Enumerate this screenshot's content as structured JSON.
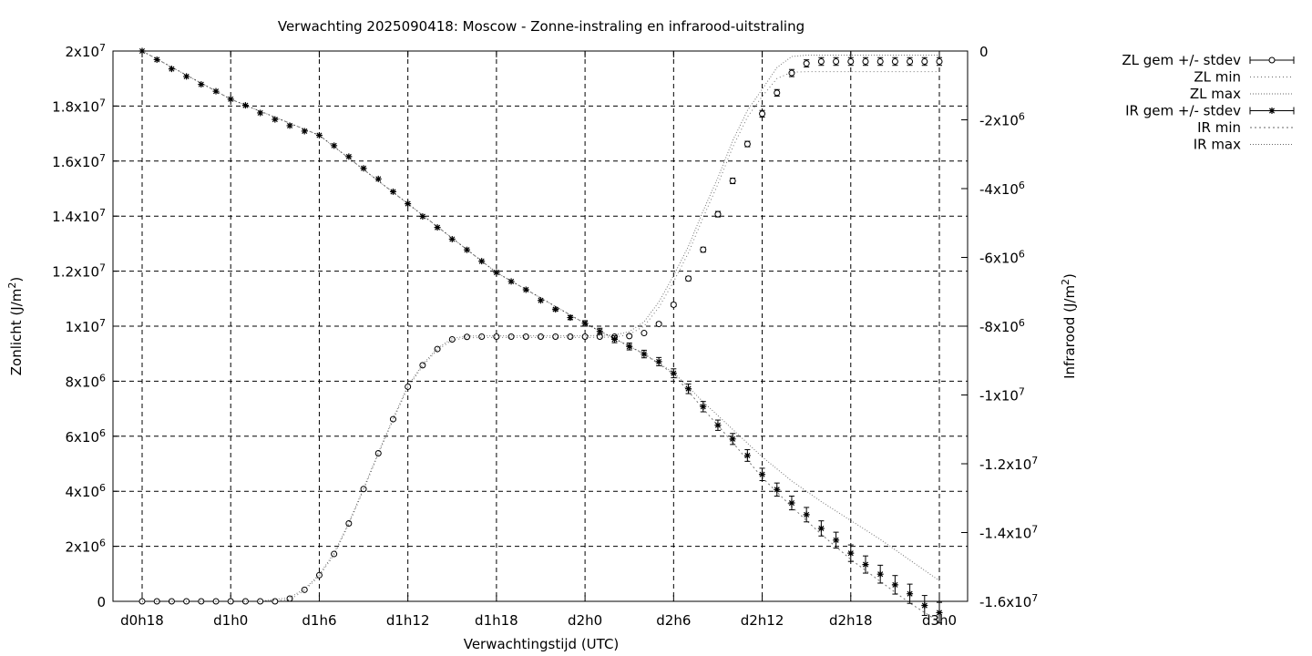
{
  "chart_data": {
    "type": "line",
    "title": "Verwachting 2025090418: Moscow - Zonne-instraling en infrarood-uitstraling",
    "xlabel": "Verwachtingstijd (UTC)",
    "ylabel": "Zonlicht (J/m²)",
    "y2label": "Infrarood (J/m²)",
    "x_ticks": [
      "d0h18",
      "d1h0",
      "d1h6",
      "d1h12",
      "d1h18",
      "d2h0",
      "d2h6",
      "d2h12",
      "d2h18",
      "d3h0"
    ],
    "xlim_hours": [
      18,
      72
    ],
    "y_ticks": [
      "0",
      "2x10^6",
      "4x10^6",
      "6x10^6",
      "8x10^6",
      "1x10^7",
      "1.2x10^7",
      "1.4x10^7",
      "1.6x10^7",
      "1.8x10^7",
      "2x10^7"
    ],
    "ylim": [
      0,
      20000000
    ],
    "y2_ticks": [
      "-1.6x10^7",
      "-1.4x10^7",
      "-1.2x10^7",
      "-1x10^7",
      "-8x10^6",
      "-6x10^6",
      "-4x10^6",
      "-2x10^6",
      "0"
    ],
    "y2lim": [
      -16000000,
      0
    ],
    "grid": true,
    "legend_position": "right, outside",
    "series": [
      {
        "name": "ZL gem +/- stdev",
        "axis": "y",
        "marker": "circle",
        "x_hours": [
          18,
          19,
          20,
          21,
          22,
          23,
          24,
          25,
          26,
          27,
          28,
          29,
          30,
          31,
          32,
          33,
          34,
          35,
          36,
          37,
          38,
          39,
          40,
          41,
          42,
          43,
          44,
          45,
          46,
          47,
          48,
          49,
          50,
          51,
          52,
          53,
          54,
          55,
          56,
          57,
          58,
          59,
          60,
          61,
          62,
          63,
          64,
          65,
          66,
          67,
          68,
          69,
          70,
          71,
          72
        ],
        "values": [
          0,
          0,
          0,
          0,
          0,
          0,
          0,
          0,
          0,
          0,
          100000,
          420000,
          950000,
          1720000,
          2830000,
          4080000,
          5380000,
          6620000,
          7800000,
          8580000,
          9170000,
          9520000,
          9610000,
          9620000,
          9620000,
          9620000,
          9620000,
          9620000,
          9620000,
          9620000,
          9620000,
          9620000,
          9620000,
          9640000,
          9750000,
          10080000,
          10780000,
          11730000,
          12780000,
          14070000,
          15280000,
          16620000,
          17720000,
          18480000,
          19200000,
          19550000,
          19620000,
          19620000,
          19620000,
          19620000,
          19620000,
          19620000,
          19620000,
          19620000,
          19620000
        ],
        "stdev": [
          0,
          0,
          0,
          0,
          0,
          0,
          0,
          0,
          0,
          0,
          0,
          0,
          0,
          0,
          0,
          0,
          0,
          0,
          0,
          0,
          0,
          0,
          0,
          0,
          0,
          0,
          0,
          0,
          0,
          0,
          0,
          0,
          0,
          0,
          0,
          60000,
          70000,
          80000,
          90000,
          100000,
          100000,
          100000,
          120000,
          120000,
          130000,
          130000,
          140000,
          140000,
          140000,
          140000,
          140000,
          140000,
          140000,
          140000,
          140000
        ]
      },
      {
        "name": "ZL min",
        "axis": "y",
        "x_hours": [
          18,
          24,
          26,
          28,
          29,
          30,
          31,
          32,
          33,
          34,
          35,
          36,
          37,
          38,
          39,
          40,
          42,
          44,
          46,
          48,
          50,
          51,
          52,
          53,
          54,
          55,
          56,
          57,
          58,
          59,
          60,
          61,
          62,
          63,
          64,
          65,
          66,
          72
        ],
        "values": [
          0,
          0,
          0,
          60000,
          400000,
          920000,
          1690000,
          2800000,
          4050000,
          5350000,
          6590000,
          7770000,
          8550000,
          9140000,
          9490000,
          9580000,
          9590000,
          9590000,
          9590000,
          9590000,
          9600000,
          9700000,
          10000000,
          10680000,
          11620000,
          12660000,
          13950000,
          15160000,
          16500000,
          17600000,
          18350000,
          19000000,
          19230000,
          19250000,
          19250000,
          19250000,
          19250000,
          19250000
        ]
      },
      {
        "name": "ZL max",
        "axis": "y",
        "x_hours": [
          18,
          24,
          26,
          28,
          29,
          30,
          31,
          32,
          33,
          34,
          35,
          36,
          37,
          38,
          39,
          40,
          42,
          44,
          46,
          48,
          50,
          51,
          52,
          53,
          54,
          55,
          56,
          57,
          58,
          59,
          60,
          61,
          62,
          63,
          64,
          65,
          66,
          72
        ],
        "values": [
          0,
          0,
          0,
          140000,
          450000,
          980000,
          1750000,
          2860000,
          4110000,
          5410000,
          6650000,
          7830000,
          8610000,
          9200000,
          9550000,
          9640000,
          9650000,
          9650000,
          9650000,
          9650000,
          9680000,
          9800000,
          10160000,
          10880000,
          11840000,
          12900000,
          14190000,
          15400000,
          16740000,
          17840000,
          18610000,
          19400000,
          19800000,
          19850000,
          19850000,
          19850000,
          19850000,
          19850000
        ]
      },
      {
        "name": "IR gem +/- stdev",
        "axis": "y2",
        "marker": "star",
        "x_hours": [
          18,
          19,
          20,
          21,
          22,
          23,
          24,
          25,
          26,
          27,
          28,
          29,
          30,
          31,
          32,
          33,
          34,
          35,
          36,
          37,
          38,
          39,
          40,
          41,
          42,
          43,
          44,
          45,
          46,
          47,
          48,
          49,
          50,
          51,
          52,
          53,
          54,
          55,
          56,
          57,
          58,
          59,
          60,
          61,
          62,
          63,
          64,
          65,
          66,
          67,
          68,
          69,
          70,
          71,
          72
        ],
        "values": [
          0,
          -250000,
          -520000,
          -740000,
          -970000,
          -1170000,
          -1400000,
          -1580000,
          -1800000,
          -1990000,
          -2170000,
          -2330000,
          -2450000,
          -2750000,
          -3070000,
          -3410000,
          -3720000,
          -4090000,
          -4440000,
          -4810000,
          -5130000,
          -5470000,
          -5780000,
          -6110000,
          -6440000,
          -6700000,
          -6940000,
          -7250000,
          -7510000,
          -7750000,
          -7920000,
          -8150000,
          -8380000,
          -8590000,
          -8810000,
          -9030000,
          -9370000,
          -9820000,
          -10340000,
          -10880000,
          -11280000,
          -11760000,
          -12310000,
          -12750000,
          -13140000,
          -13480000,
          -13880000,
          -14220000,
          -14600000,
          -14930000,
          -15210000,
          -15520000,
          -15780000,
          -16120000,
          -16330000
        ],
        "stdev": [
          0,
          0,
          0,
          0,
          0,
          0,
          0,
          0,
          0,
          0,
          0,
          0,
          0,
          0,
          0,
          0,
          0,
          0,
          0,
          0,
          0,
          0,
          0,
          0,
          0,
          0,
          0,
          0,
          40000,
          60000,
          80000,
          90000,
          100000,
          100000,
          110000,
          120000,
          130000,
          140000,
          150000,
          150000,
          160000,
          170000,
          180000,
          190000,
          200000,
          210000,
          220000,
          230000,
          240000,
          250000,
          260000,
          270000,
          280000,
          290000,
          300000
        ]
      },
      {
        "name": "IR min",
        "axis": "y2",
        "x_hours": [
          18,
          24,
          30,
          36,
          42,
          48,
          52,
          54,
          56,
          58,
          60,
          62,
          64,
          66,
          68,
          70,
          72
        ],
        "values": [
          0,
          -1400000,
          -2450000,
          -4440000,
          -6440000,
          -7920000,
          -8810000,
          -9390000,
          -10400000,
          -11380000,
          -12400000,
          -13250000,
          -14050000,
          -14780000,
          -15420000,
          -16050000,
          -16600000
        ]
      },
      {
        "name": "IR max",
        "axis": "y2",
        "x_hours": [
          18,
          24,
          30,
          36,
          42,
          48,
          52,
          54,
          56,
          58,
          60,
          62,
          64,
          66,
          68,
          70,
          72
        ],
        "values": [
          0,
          -1400000,
          -2450000,
          -4440000,
          -6440000,
          -7920000,
          -8800000,
          -9350000,
          -10200000,
          -11000000,
          -11800000,
          -12500000,
          -13100000,
          -13650000,
          -14200000,
          -14800000,
          -15400000
        ]
      }
    ]
  }
}
